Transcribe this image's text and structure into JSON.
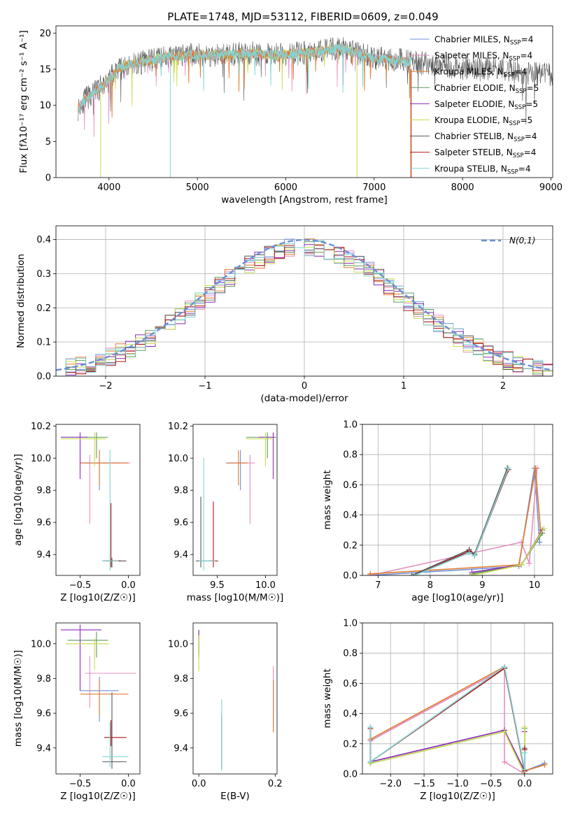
{
  "colors": {
    "chabrier_miles": "#6f8fd8",
    "salpeter_miles": "#e68fc0",
    "kroupa_miles": "#e07a2e",
    "chabrier_elodie": "#5f9a5f",
    "salpeter_elodie": "#8b2bb8",
    "kroupa_elodie": "#c7dc4a",
    "chabrier_stelib": "#555555",
    "salpeter_stelib": "#b01515",
    "kroupa_stelib": "#7fd6d6",
    "normal": "#6a8fd8",
    "grid": "#b0b0b0"
  },
  "chart_data": [
    {
      "id": "spectrum",
      "type": "line",
      "title": "PLATE=1748, MJD=53112, FIBERID=0609, z=0.049",
      "xlabel": "wavelength [Angstrom, rest frame]",
      "ylabel": "Flux [fλ10⁻¹⁷ erg cm⁻² s⁻¹ A⁻¹]",
      "xlim": [
        3400,
        9020
      ],
      "ylim": [
        0,
        21
      ],
      "xticks": [
        4000,
        5000,
        6000,
        7000,
        8000,
        9000
      ],
      "yticks": [
        0,
        5,
        10,
        15,
        20
      ],
      "grid": false,
      "legend_position": "right",
      "data_x": [
        3650,
        3700,
        3800,
        3900,
        4000,
        4100,
        4200,
        4300,
        4400,
        4500,
        4600,
        4700,
        4800,
        4900,
        5000,
        5200,
        5400,
        5600,
        5800,
        6000,
        6200,
        6400,
        6600,
        6800,
        7000,
        7200,
        7400,
        7600,
        7800,
        8000,
        8200,
        8400,
        8600,
        8800,
        9000
      ],
      "data_y": [
        9.5,
        10.5,
        11.5,
        12.5,
        13.5,
        15.0,
        15.5,
        15.8,
        16.0,
        16.3,
        16.6,
        16.8,
        16.7,
        17.0,
        17.0,
        16.9,
        17.1,
        17.2,
        17.0,
        17.0,
        17.3,
        17.5,
        18.0,
        17.2,
        16.5,
        16.3,
        16.0,
        15.8,
        15.5,
        15.3,
        15.0,
        15.2,
        14.6,
        14.5,
        14.2
      ],
      "legend": [
        "Chabrier MILES, N_SSP=4",
        "Salpeter MILES, N_SSP=4",
        "Kroupa MILES, N_SSP=4",
        "Chabrier ELODIE, N_SSP=5",
        "Salpeter ELODIE, N_SSP=5",
        "Kroupa ELODIE, N_SSP=5",
        "Chabrier STELIB, N_SSP=4",
        "Salpeter STELIB, N_SSP=4",
        "Kroupa STELIB, N_SSP=4"
      ]
    },
    {
      "id": "residuals",
      "type": "line",
      "xlabel": "(data-model)/error",
      "ylabel": "Normed distribution",
      "xlim": [
        -2.5,
        2.5
      ],
      "ylim": [
        0,
        0.44
      ],
      "xticks": [
        -2,
        -1,
        0,
        1,
        2
      ],
      "yticks": [
        0.0,
        0.1,
        0.2,
        0.3,
        0.4
      ],
      "grid": true,
      "legend_position": "top-right",
      "legend": [
        "N(0,1)"
      ],
      "normal_curve": {
        "mean": 0,
        "sigma": 1
      }
    },
    {
      "id": "age_vs_Z",
      "type": "scatter",
      "xlabel": "Z [log10(Z/Z☉)]",
      "ylabel": "age [log10(age/yr)]",
      "xlim": [
        -0.75,
        0.12
      ],
      "ylim": [
        9.27,
        10.21
      ],
      "xticks": [
        -0.5,
        0.0
      ],
      "xtick_labels": [
        "−0.5",
        "0.0"
      ],
      "yticks": [
        9.4,
        9.6,
        9.8,
        10.0,
        10.2
      ],
      "grid": false,
      "points": [
        {
          "series": "chabrier_miles",
          "x": -0.3,
          "y": 9.97,
          "xerr": [
            0.2,
            0.2
          ],
          "yerr": [
            0.17,
            0.08
          ]
        },
        {
          "series": "salpeter_miles",
          "x": -0.4,
          "y": 9.97,
          "xerr": [
            0.05,
            0.42
          ],
          "yerr": [
            0.38,
            0.05
          ]
        },
        {
          "series": "kroupa_miles",
          "x": -0.3,
          "y": 9.97,
          "xerr": [
            0.2,
            0.3
          ],
          "yerr": [
            0.14,
            0.08
          ]
        },
        {
          "series": "chabrier_elodie",
          "x": -0.33,
          "y": 10.13,
          "xerr": [
            0.37,
            0.12
          ],
          "yerr": [
            0.13,
            0.03
          ]
        },
        {
          "series": "salpeter_elodie",
          "x": -0.5,
          "y": 10.13,
          "xerr": [
            0.2,
            0.08
          ],
          "yerr": [
            0.26,
            0.03
          ]
        },
        {
          "series": "kroupa_elodie",
          "x": -0.35,
          "y": 10.12,
          "xerr": [
            0.35,
            0.12
          ],
          "yerr": [
            0.17,
            0.04
          ]
        },
        {
          "series": "chabrier_stelib",
          "x": -0.17,
          "y": 9.36,
          "xerr": [
            0.1,
            0.15
          ],
          "yerr": [
            0.04,
            0.02
          ]
        },
        {
          "series": "salpeter_stelib",
          "x": -0.18,
          "y": 9.36,
          "xerr": [
            0.07,
            0.1
          ],
          "yerr": [
            0.04,
            0.36
          ]
        },
        {
          "series": "kroupa_stelib",
          "x": -0.19,
          "y": 9.36,
          "xerr": [
            0.08,
            0.09
          ],
          "yerr": [
            0.06,
            0.69
          ]
        }
      ]
    },
    {
      "id": "age_vs_mass",
      "type": "scatter",
      "xlabel": "mass [log10(M/M☉)]",
      "xlim": [
        9.25,
        10.12
      ],
      "ylim": [
        9.27,
        10.21
      ],
      "xticks": [
        9.5,
        10.0
      ],
      "yticks": [
        9.4,
        9.6,
        9.8,
        10.0,
        10.2
      ],
      "grid": false,
      "points": [
        {
          "series": "chabrier_miles",
          "x": 9.74,
          "y": 9.97,
          "xerr": [
            0.15,
            0.05
          ],
          "yerr": [
            0.17,
            0.08
          ]
        },
        {
          "series": "salpeter_miles",
          "x": 9.84,
          "y": 9.97,
          "xerr": [
            0.1,
            0.05
          ],
          "yerr": [
            0.38,
            0.05
          ]
        },
        {
          "series": "kroupa_miles",
          "x": 9.72,
          "y": 9.97,
          "xerr": [
            0.12,
            0.1
          ],
          "yerr": [
            0.14,
            0.08
          ]
        },
        {
          "series": "chabrier_elodie",
          "x": 10.02,
          "y": 10.13,
          "xerr": [
            0.22,
            0.05
          ],
          "yerr": [
            0.13,
            0.03
          ]
        },
        {
          "series": "salpeter_elodie",
          "x": 10.08,
          "y": 10.13,
          "xerr": [
            0.15,
            0.03
          ],
          "yerr": [
            0.26,
            0.03
          ]
        },
        {
          "series": "kroupa_elodie",
          "x": 10.0,
          "y": 10.12,
          "xerr": [
            0.2,
            0.08
          ],
          "yerr": [
            0.17,
            0.04
          ]
        },
        {
          "series": "chabrier_stelib",
          "x": 9.33,
          "y": 9.36,
          "xerr": [
            0.05,
            0.15
          ],
          "yerr": [
            0.04,
            0.4
          ]
        },
        {
          "series": "salpeter_stelib",
          "x": 9.46,
          "y": 9.36,
          "xerr": [
            0.05,
            0.05
          ],
          "yerr": [
            0.04,
            0.37
          ]
        },
        {
          "series": "kroupa_stelib",
          "x": 9.36,
          "y": 9.36,
          "xerr": [
            0.05,
            0.12
          ],
          "yerr": [
            0.06,
            0.64
          ]
        }
      ]
    },
    {
      "id": "weight_vs_age",
      "type": "line",
      "xlabel": "age [log10(age/yr)]",
      "ylabel": "mass weight",
      "xlim": [
        6.7,
        10.35
      ],
      "ylim": [
        0,
        1.0
      ],
      "xticks": [
        7,
        8,
        9,
        10
      ],
      "yticks": [
        0.0,
        0.2,
        0.4,
        0.6,
        0.8,
        1.0
      ],
      "grid": true,
      "series": [
        {
          "name": "chabrier_miles",
          "x": [
            6.85,
            9.7,
            10.0,
            10.1
          ],
          "y": [
            0.0,
            0.06,
            0.71,
            0.22
          ]
        },
        {
          "name": "salpeter_miles",
          "x": [
            6.85,
            9.75,
            9.9,
            10.05
          ],
          "y": [
            0.0,
            0.22,
            0.08,
            0.71
          ]
        },
        {
          "name": "kroupa_miles",
          "x": [
            6.85,
            9.7,
            10.02,
            10.12
          ],
          "y": [
            0.01,
            0.07,
            0.71,
            0.28
          ]
        },
        {
          "name": "chabrier_elodie",
          "x": [
            8.8,
            9.75,
            10.15
          ],
          "y": [
            0.01,
            0.07,
            0.28
          ]
        },
        {
          "name": "salpeter_elodie",
          "x": [
            8.8,
            9.75,
            10.15
          ],
          "y": [
            0.02,
            0.07,
            0.3
          ]
        },
        {
          "name": "kroupa_elodie",
          "x": [
            8.8,
            9.75,
            10.18
          ],
          "y": [
            0.0,
            0.07,
            0.31
          ]
        },
        {
          "name": "chabrier_stelib",
          "x": [
            7.65,
            8.75,
            8.85,
            9.48
          ],
          "y": [
            0.0,
            0.17,
            0.14,
            0.71
          ]
        },
        {
          "name": "salpeter_stelib",
          "x": [
            7.7,
            8.75,
            8.85,
            9.5
          ],
          "y": [
            0.0,
            0.16,
            0.13,
            0.7
          ]
        },
        {
          "name": "kroupa_stelib",
          "x": [
            7.7,
            8.75,
            8.85,
            9.5
          ],
          "y": [
            0.0,
            0.15,
            0.13,
            0.71
          ]
        }
      ]
    },
    {
      "id": "mass_vs_Z",
      "type": "scatter",
      "xlabel": "Z [log10(Z/Z☉)]",
      "ylabel": "mass [log10(M/M☉)]",
      "xlim": [
        -0.75,
        0.12
      ],
      "ylim": [
        9.25,
        10.12
      ],
      "xticks": [
        -0.5,
        0.0
      ],
      "xtick_labels": [
        "−0.5",
        "0.0"
      ],
      "yticks": [
        9.4,
        9.6,
        9.8,
        10.0
      ],
      "grid": false,
      "points": [
        {
          "series": "chabrier_miles",
          "x": -0.3,
          "y": 9.73,
          "xerr": [
            0.2,
            0.2
          ],
          "yerr": [
            0.18,
            0.08
          ]
        },
        {
          "series": "salpeter_miles",
          "x": -0.4,
          "y": 9.83,
          "xerr": [
            0.05,
            0.48
          ],
          "yerr": [
            0.2,
            0.1
          ]
        },
        {
          "series": "kroupa_miles",
          "x": -0.3,
          "y": 9.71,
          "xerr": [
            0.2,
            0.3
          ],
          "yerr": [
            0.12,
            0.08
          ]
        },
        {
          "series": "chabrier_elodie",
          "x": -0.33,
          "y": 10.02,
          "xerr": [
            0.3,
            0.12
          ],
          "yerr": [
            0.1,
            0.05
          ]
        },
        {
          "series": "salpeter_elodie",
          "x": -0.5,
          "y": 10.08,
          "xerr": [
            0.2,
            0.22
          ],
          "yerr": [
            0.35,
            0.03
          ]
        },
        {
          "series": "kroupa_elodie",
          "x": -0.35,
          "y": 10.0,
          "xerr": [
            0.3,
            0.15
          ],
          "yerr": [
            0.15,
            0.03
          ]
        },
        {
          "series": "chabrier_stelib",
          "x": -0.17,
          "y": 9.32,
          "xerr": [
            0.1,
            0.15
          ],
          "yerr": [
            0.04,
            0.4
          ]
        },
        {
          "series": "salpeter_stelib",
          "x": -0.18,
          "y": 9.46,
          "xerr": [
            0.07,
            0.16
          ],
          "yerr": [
            0.05,
            0.1
          ]
        },
        {
          "series": "kroupa_stelib",
          "x": -0.19,
          "y": 9.35,
          "xerr": [
            0.08,
            0.19
          ],
          "yerr": [
            0.06,
            0.2
          ]
        }
      ]
    },
    {
      "id": "mass_vs_ebv",
      "type": "scatter",
      "xlabel": "E(B-V)",
      "xlim": [
        -0.015,
        0.205
      ],
      "ylim": [
        9.25,
        10.12
      ],
      "xticks": [
        0.0,
        0.2
      ],
      "yticks": [
        9.4,
        9.6,
        9.8,
        10.0
      ],
      "grid": false,
      "points": [
        {
          "series": "chabrier_miles",
          "x": 0.195,
          "y": 9.73,
          "xerr": [
            0,
            0
          ],
          "yerr": [
            0.22,
            0.08
          ]
        },
        {
          "series": "salpeter_miles",
          "x": 0.195,
          "y": 9.83,
          "xerr": [
            0,
            0
          ],
          "yerr": [
            0.2,
            0.04
          ]
        },
        {
          "series": "kroupa_miles",
          "x": 0.195,
          "y": 9.71,
          "xerr": [
            0,
            0
          ],
          "yerr": [
            0.22,
            0.08
          ]
        },
        {
          "series": "chabrier_elodie",
          "x": 0.0,
          "y": 10.02,
          "xerr": [
            0,
            0
          ],
          "yerr": [
            0.1,
            0.05
          ]
        },
        {
          "series": "salpeter_elodie",
          "x": 0.0,
          "y": 10.02,
          "xerr": [
            0,
            0
          ],
          "yerr": [
            0.08,
            0.06
          ]
        },
        {
          "series": "kroupa_elodie",
          "x": 0.0,
          "y": 10.0,
          "xerr": [
            0,
            0
          ],
          "yerr": [
            0.16,
            0.05
          ]
        },
        {
          "series": "chabrier_stelib",
          "x": 0.06,
          "y": 9.4,
          "xerr": [
            0,
            0
          ],
          "yerr": [
            0.13,
            0.18
          ]
        },
        {
          "series": "salpeter_stelib",
          "x": 0.06,
          "y": 9.4,
          "xerr": [
            0,
            0
          ],
          "yerr": [
            0.12,
            0.2
          ]
        },
        {
          "series": "kroupa_stelib",
          "x": 0.06,
          "y": 9.45,
          "xerr": [
            0,
            0
          ],
          "yerr": [
            0.18,
            0.23
          ]
        }
      ]
    },
    {
      "id": "weight_vs_Z",
      "type": "line",
      "xlabel": "Z [log10(Z/Z☉)]",
      "ylabel": "mass weight",
      "xlim": [
        -2.42,
        0.42
      ],
      "ylim": [
        0,
        1.0
      ],
      "xticks": [
        -2.0,
        -1.5,
        -1.0,
        -0.5,
        0.0
      ],
      "xtick_labels": [
        "−2.0",
        "−1.5",
        "−1.0",
        "−0.5",
        "0.0"
      ],
      "yticks": [
        0.0,
        0.2,
        0.4,
        0.6,
        0.8,
        1.0
      ],
      "grid": true,
      "series": [
        {
          "name": "chabrier_miles",
          "x": [
            -2.3,
            -0.3,
            0.0,
            0.3
          ],
          "y": [
            0.22,
            0.7,
            0.02,
            0.07
          ]
        },
        {
          "name": "salpeter_miles",
          "x": [
            -2.3,
            -0.3,
            -0.3,
            0.0
          ],
          "y": [
            0.22,
            0.7,
            0.08,
            0.0
          ]
        },
        {
          "name": "kroupa_miles",
          "x": [
            -2.3,
            -0.3,
            0.0,
            0.3
          ],
          "y": [
            0.23,
            0.71,
            0.02,
            0.06
          ]
        },
        {
          "name": "chabrier_elodie",
          "x": [
            -2.3,
            -0.3,
            0.0,
            0.0
          ],
          "y": [
            0.07,
            0.28,
            0.02,
            0.3
          ]
        },
        {
          "name": "salpeter_elodie",
          "x": [
            -2.3,
            -0.3,
            0.0,
            0.0
          ],
          "y": [
            0.08,
            0.29,
            0.02,
            0.28
          ]
        },
        {
          "name": "kroupa_elodie",
          "x": [
            -2.3,
            -0.3,
            0.0,
            0.0
          ],
          "y": [
            0.07,
            0.28,
            0.0,
            0.31
          ]
        },
        {
          "name": "chabrier_stelib",
          "x": [
            -2.3,
            -2.3,
            -0.3,
            0.0,
            0.0
          ],
          "y": [
            0.31,
            0.08,
            0.7,
            0.02,
            0.17
          ]
        },
        {
          "name": "salpeter_stelib",
          "x": [
            -2.3,
            -2.3,
            -0.3,
            0.0,
            0.0
          ],
          "y": [
            0.3,
            0.08,
            0.7,
            0.02,
            0.16
          ]
        },
        {
          "name": "kroupa_stelib",
          "x": [
            -2.3,
            -2.3,
            -0.3,
            0.0,
            0.0
          ],
          "y": [
            0.31,
            0.08,
            0.71,
            0.03,
            0.14
          ]
        }
      ]
    }
  ]
}
